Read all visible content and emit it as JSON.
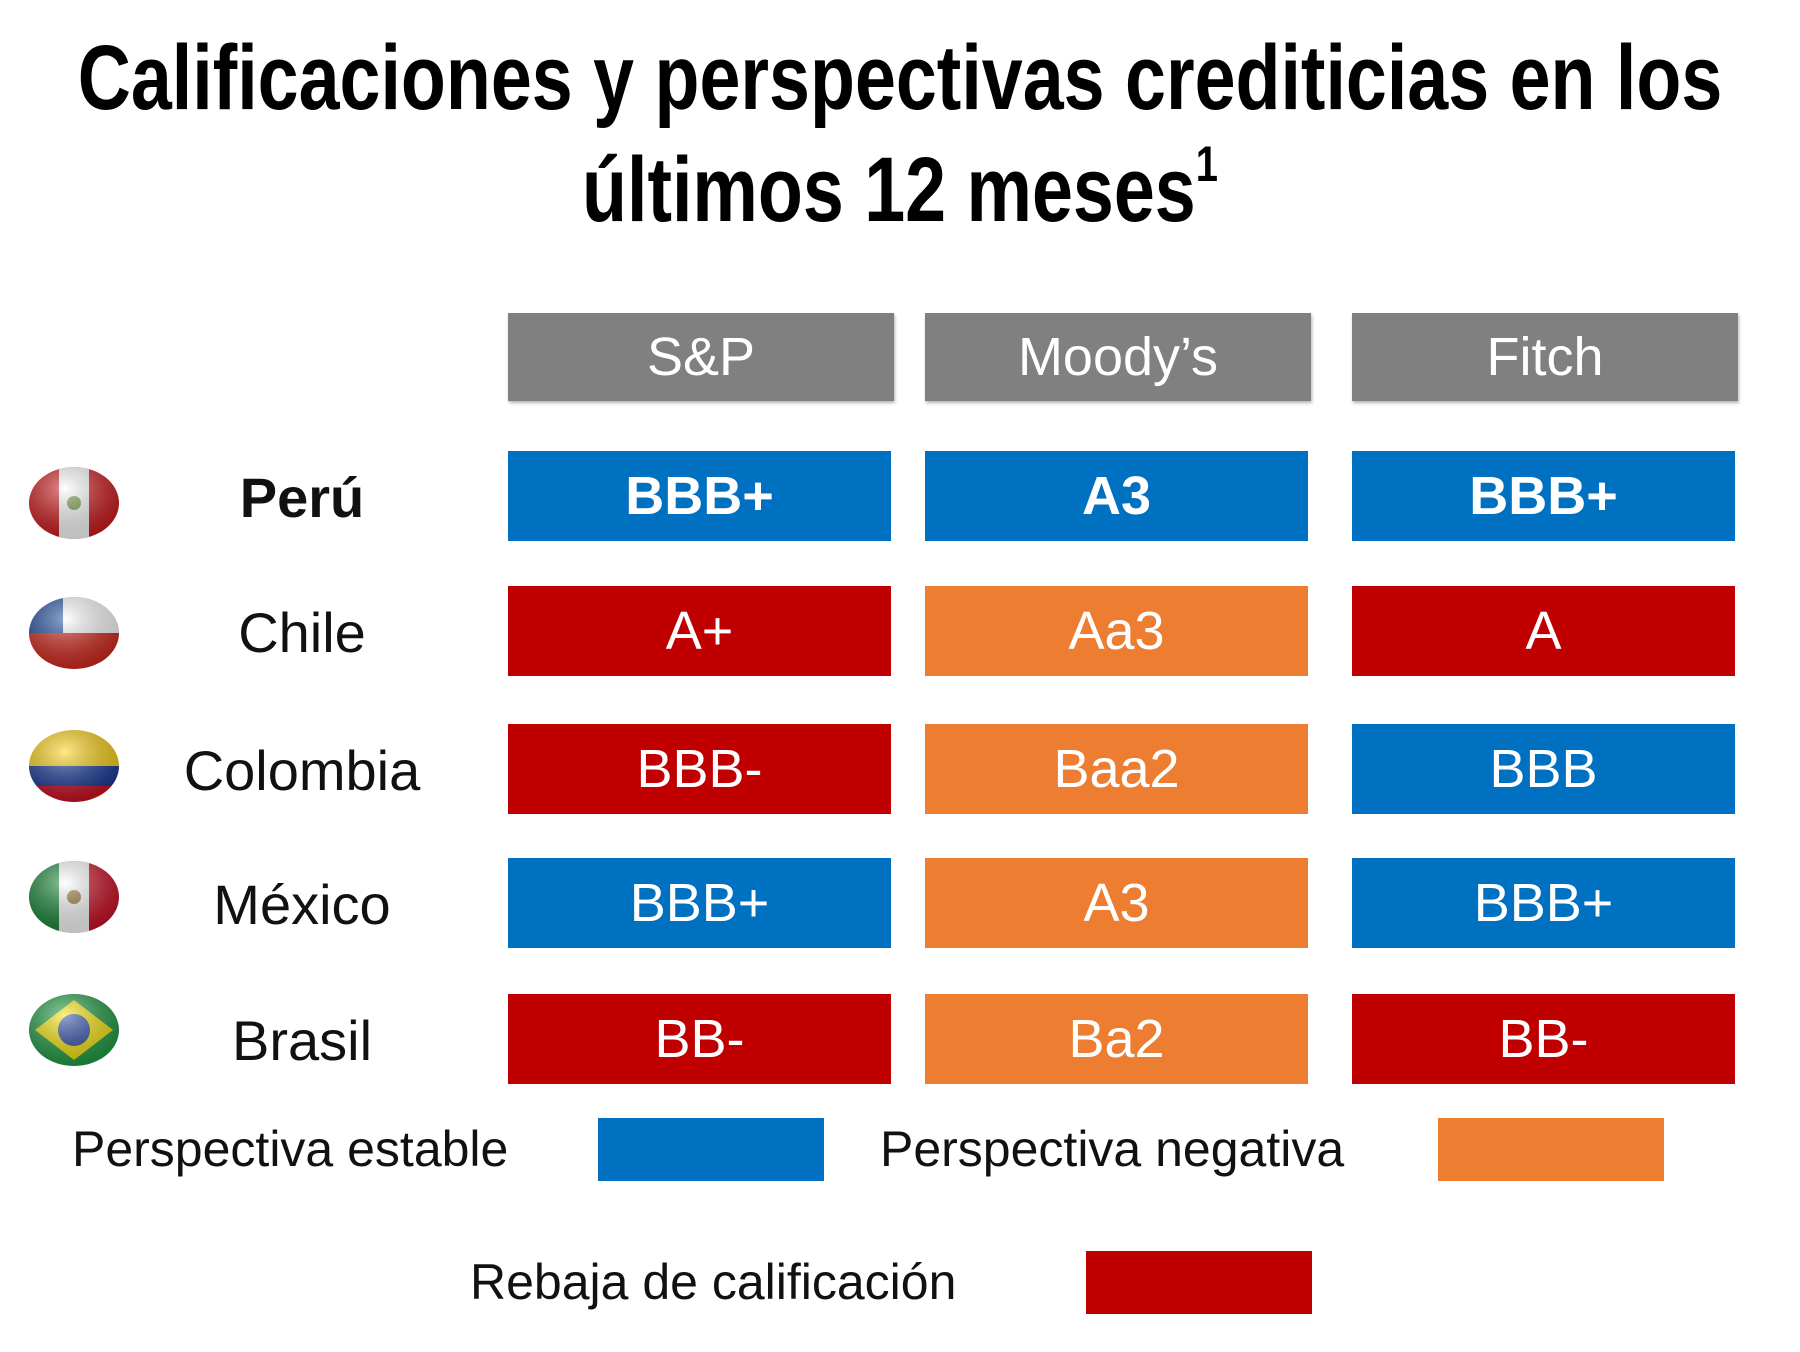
{
  "title": "Calificaciones y perspectivas crediticias en los últimos 12 meses",
  "title_note": "1",
  "headers": [
    "S&P",
    "Moody’s",
    "Fitch"
  ],
  "header_color": "#808080",
  "rows": [
    {
      "country": "Perú",
      "ratings": [
        {
          "text": "BBB+",
          "color": "#0070c0"
        },
        {
          "text": "A3",
          "color": "#0070c0"
        },
        {
          "text": "BBB+",
          "color": "#0070c0"
        }
      ]
    },
    {
      "country": "Chile",
      "ratings": [
        {
          "text": "A+",
          "color": "#c00000"
        },
        {
          "text": "Aa3",
          "color": "#ed7d31"
        },
        {
          "text": "A",
          "color": "#c00000"
        }
      ]
    },
    {
      "country": "Colombia",
      "ratings": [
        {
          "text": "BBB-",
          "color": "#c00000"
        },
        {
          "text": "Baa2",
          "color": "#ed7d31"
        },
        {
          "text": "BBB",
          "color": "#0070c0"
        }
      ]
    },
    {
      "country": "México",
      "ratings": [
        {
          "text": "BBB+",
          "color": "#0070c0"
        },
        {
          "text": "A3",
          "color": "#ed7d31"
        },
        {
          "text": "BBB+",
          "color": "#0070c0"
        }
      ]
    },
    {
      "country": "Brasil",
      "ratings": [
        {
          "text": "BB-",
          "color": "#c00000"
        },
        {
          "text": "Ba2",
          "color": "#ed7d31"
        },
        {
          "text": "BB-",
          "color": "#c00000"
        }
      ]
    }
  ],
  "legend": [
    {
      "label": "Perspectiva estable",
      "color": "#0070c0"
    },
    {
      "label": "Perspectiva negativa",
      "color": "#ed7d31"
    },
    {
      "label": "Rebaja de calificación",
      "color": "#c00000"
    }
  ]
}
